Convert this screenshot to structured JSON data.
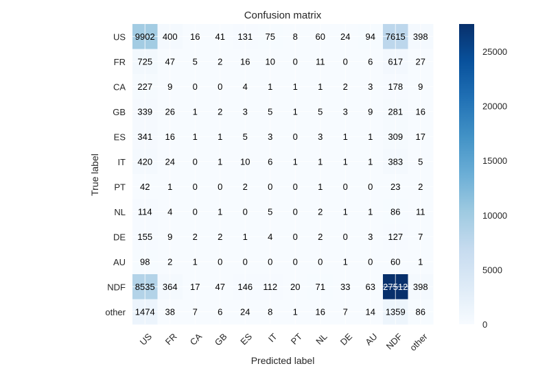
{
  "chart_data": {
    "type": "heatmap",
    "title": "Confusion matrix",
    "xlabel": "Predicted label",
    "ylabel": "True label",
    "x_categories": [
      "US",
      "FR",
      "CA",
      "GB",
      "ES",
      "IT",
      "PT",
      "NL",
      "DE",
      "AU",
      "NDF",
      "other"
    ],
    "y_categories": [
      "US",
      "FR",
      "CA",
      "GB",
      "ES",
      "IT",
      "PT",
      "NL",
      "DE",
      "AU",
      "NDF",
      "other"
    ],
    "values": [
      [
        9902,
        400,
        16,
        41,
        131,
        75,
        8,
        60,
        24,
        94,
        7615,
        398
      ],
      [
        725,
        47,
        5,
        2,
        16,
        10,
        0,
        11,
        0,
        6,
        617,
        27
      ],
      [
        227,
        9,
        0,
        0,
        4,
        1,
        1,
        1,
        2,
        3,
        178,
        9
      ],
      [
        339,
        26,
        1,
        2,
        3,
        5,
        1,
        5,
        3,
        9,
        281,
        16
      ],
      [
        341,
        16,
        1,
        1,
        5,
        3,
        0,
        3,
        1,
        1,
        309,
        17
      ],
      [
        420,
        24,
        0,
        1,
        10,
        6,
        1,
        1,
        1,
        1,
        383,
        5
      ],
      [
        42,
        1,
        0,
        0,
        2,
        0,
        0,
        1,
        0,
        0,
        23,
        2
      ],
      [
        114,
        4,
        0,
        1,
        0,
        5,
        0,
        2,
        1,
        1,
        86,
        11
      ],
      [
        155,
        9,
        2,
        2,
        1,
        4,
        0,
        2,
        0,
        3,
        127,
        7
      ],
      [
        98,
        2,
        1,
        0,
        0,
        0,
        0,
        0,
        1,
        0,
        60,
        1
      ],
      [
        8535,
        364,
        17,
        47,
        146,
        112,
        20,
        71,
        33,
        63,
        27512,
        398
      ],
      [
        1474,
        38,
        7,
        6,
        24,
        8,
        1,
        16,
        7,
        14,
        1359,
        86
      ]
    ],
    "colormap": "Blues",
    "colorbar": {
      "ticks": [
        0,
        5000,
        10000,
        15000,
        20000,
        25000
      ],
      "min": 0,
      "max": 27512
    },
    "grid": true
  }
}
